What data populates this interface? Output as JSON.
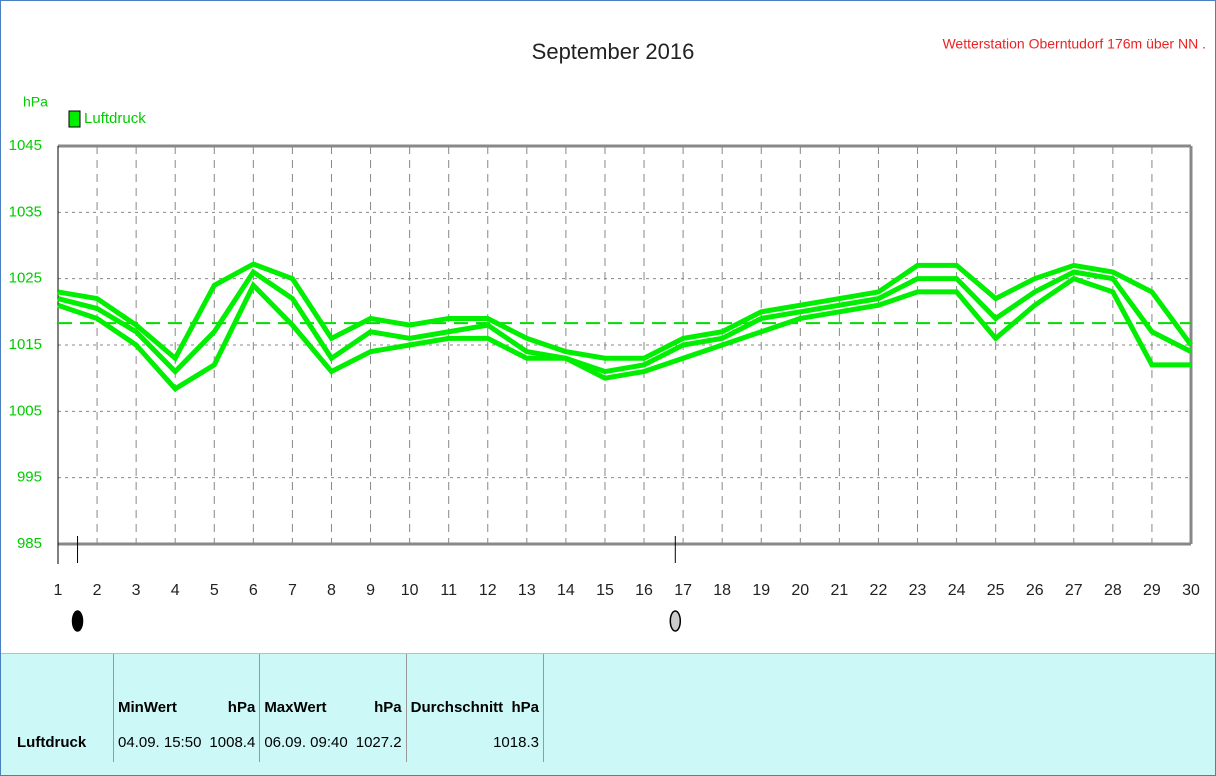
{
  "chart_data": {
    "type": "line",
    "title": "September 2016",
    "station": "Wetterstation Oberntudorf 176m über NN .",
    "y_label": "hPa",
    "x": [
      1,
      2,
      3,
      4,
      5,
      6,
      7,
      8,
      9,
      10,
      11,
      12,
      13,
      14,
      15,
      16,
      17,
      18,
      19,
      20,
      21,
      22,
      23,
      24,
      25,
      26,
      27,
      28,
      29,
      30
    ],
    "xlim": [
      1,
      30
    ],
    "xticks": [
      1,
      2,
      3,
      4,
      5,
      6,
      7,
      8,
      9,
      10,
      11,
      12,
      13,
      14,
      15,
      16,
      17,
      18,
      19,
      20,
      21,
      22,
      23,
      24,
      25,
      26,
      27,
      28,
      29,
      30
    ],
    "ylim": [
      985,
      1045
    ],
    "yticks": [
      985,
      995,
      1005,
      1015,
      1025,
      1035,
      1045
    ],
    "grid": true,
    "mean": 1018.3,
    "mean_color": "#00dd00",
    "moon_markers": [
      {
        "x": 1.5,
        "color": "#000000"
      },
      {
        "x": 16.8,
        "color": "#cccccc"
      }
    ],
    "series": [
      {
        "name": "Luftdruck",
        "color": "#00ee00",
        "values": [
          1023,
          1022,
          1018,
          1013,
          1024,
          1027.2,
          1025,
          1016,
          1019,
          1018,
          1019,
          1019,
          1016,
          1014,
          1013,
          1013,
          1016,
          1017,
          1020,
          1021,
          1022,
          1023,
          1027,
          1027,
          1022,
          1025,
          1027,
          1026,
          1023,
          1015
        ]
      },
      {
        "color": "#00ee00",
        "values": [
          1022,
          1020.5,
          1017,
          1011,
          1017,
          1026,
          1022,
          1013,
          1017,
          1016,
          1017,
          1018,
          1014,
          1013,
          1011,
          1012,
          1015,
          1016,
          1019,
          1020,
          1021,
          1022,
          1025,
          1025,
          1019,
          1023,
          1026,
          1025,
          1017,
          1014
        ]
      },
      {
        "color": "#00ee00",
        "values": [
          1021,
          1019,
          1015,
          1008.4,
          1012,
          1024,
          1018,
          1011,
          1014,
          1015,
          1016,
          1016,
          1013,
          1013,
          1010,
          1011,
          1013,
          1015,
          1017,
          1019,
          1020,
          1021,
          1023,
          1023,
          1016,
          1021,
          1025,
          1023,
          1012,
          1012
        ]
      }
    ]
  },
  "stats": {
    "headers": [
      "MinWert",
      "hPa",
      "MaxWert",
      "hPa",
      "Durchschnitt  hPa"
    ],
    "row": {
      "label": "Luftdruck",
      "min_time": "04.09. 15:50",
      "min": "1008.4",
      "max_time": "06.09. 09:40",
      "max": "1027.2",
      "avg": "1018.3"
    }
  }
}
